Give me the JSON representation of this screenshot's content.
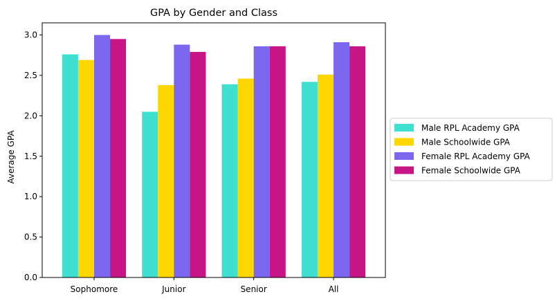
{
  "chart_data": {
    "type": "bar",
    "title": "GPA by Gender and Class",
    "xlabel": "",
    "ylabel": "Average GPA",
    "categories": [
      "Sophomore",
      "Junior",
      "Senior",
      "All"
    ],
    "series": [
      {
        "name": "Male RPL Academy GPA",
        "color": "#40E0D0",
        "values": [
          2.76,
          2.05,
          2.39,
          2.42
        ]
      },
      {
        "name": "Male Schoolwide GPA",
        "color": "#FFD700",
        "values": [
          2.69,
          2.38,
          2.46,
          2.51
        ]
      },
      {
        "name": "Female RPL Academy GPA",
        "color": "#7B68EE",
        "values": [
          3.0,
          2.88,
          2.86,
          2.91
        ]
      },
      {
        "name": "Female Schoolwide GPA",
        "color": "#C71585",
        "values": [
          2.95,
          2.79,
          2.86,
          2.86
        ]
      }
    ],
    "ylim": [
      0,
      3.15
    ],
    "yticks": [
      "0.0",
      "0.5",
      "1.0",
      "1.5",
      "2.0",
      "2.5",
      "3.0"
    ],
    "grid": false,
    "legend_position": "right"
  }
}
